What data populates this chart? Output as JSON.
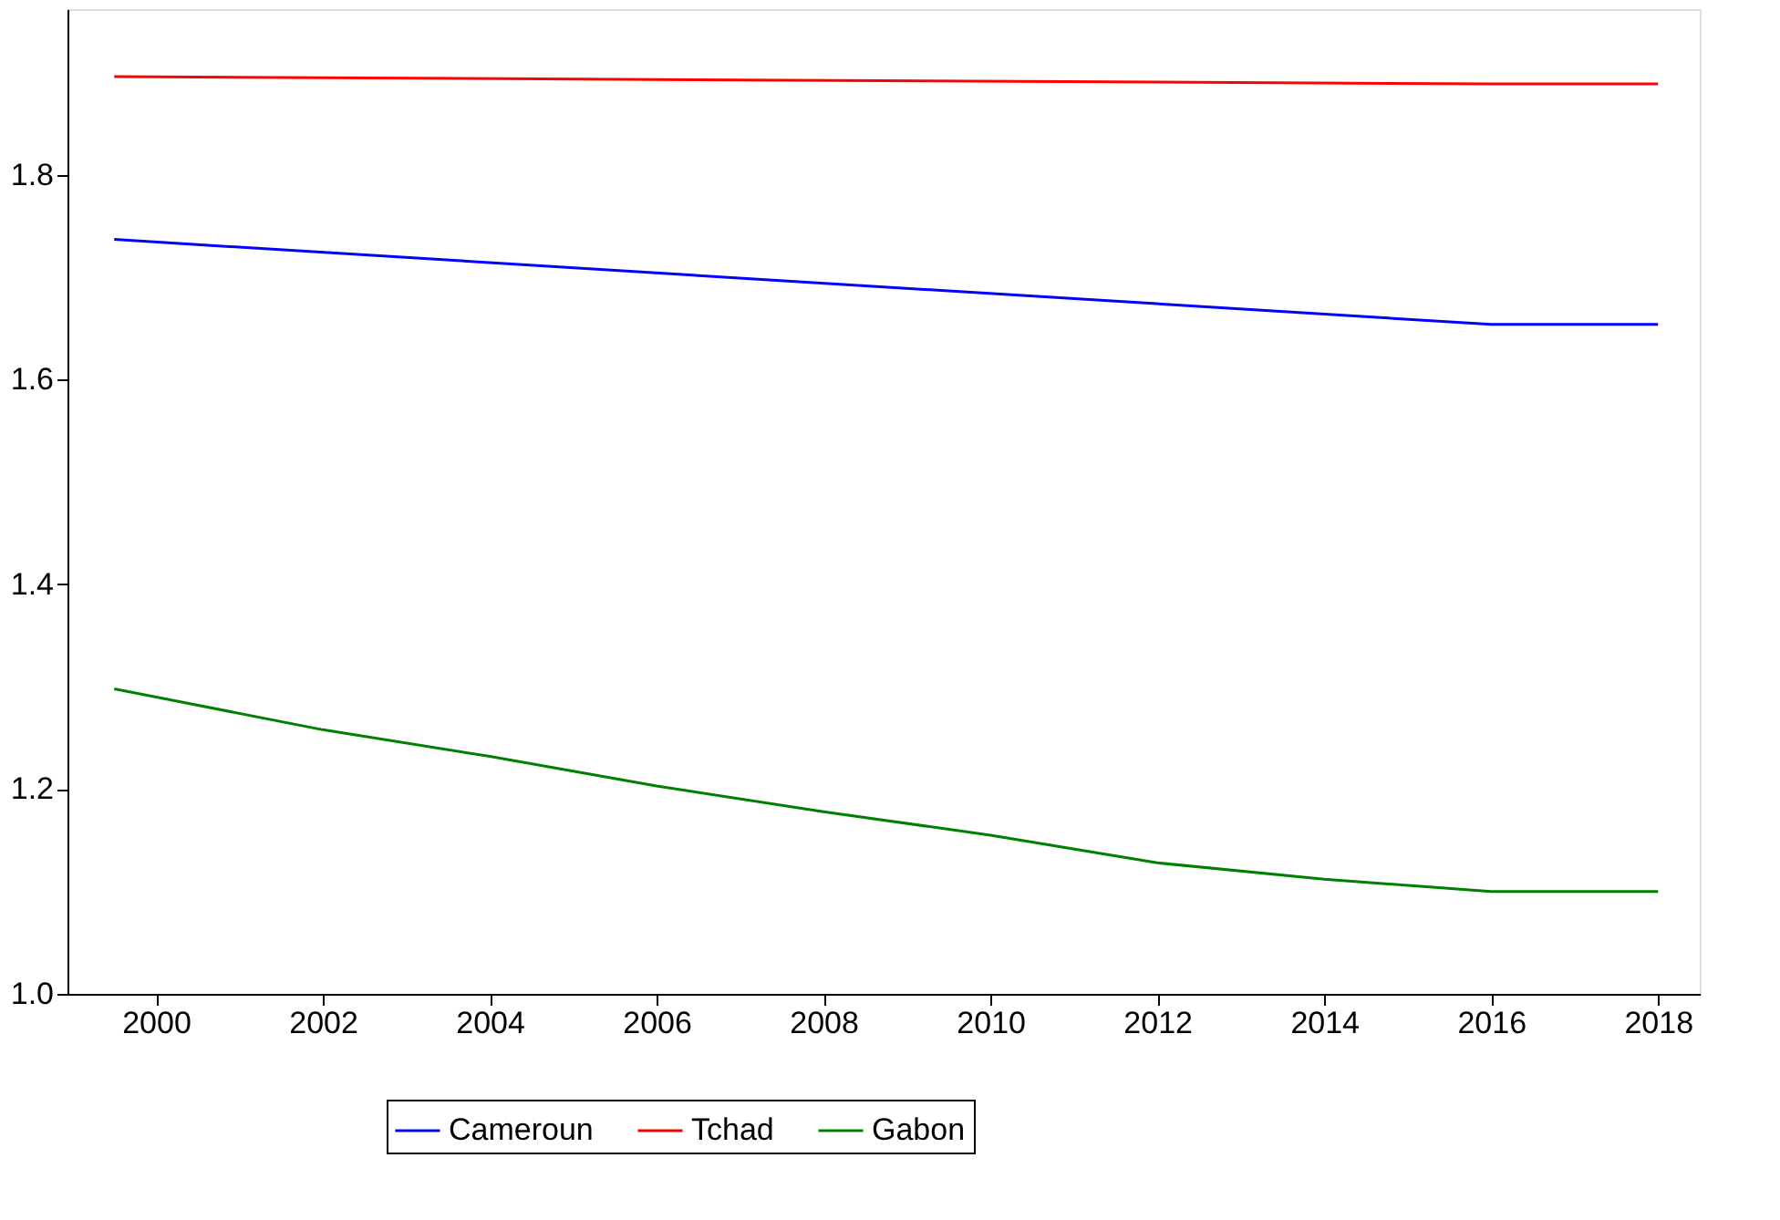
{
  "chart_data": {
    "type": "line",
    "xlim": [
      1998.94,
      2018.5
    ],
    "xticks": [
      2000,
      2002,
      2004,
      2006,
      2008,
      2010,
      2012,
      2014,
      2016,
      2018
    ],
    "ylim": [
      1.0,
      1.962
    ],
    "yticks": [
      {
        "value": 1.0,
        "label": "1.0"
      },
      1.2,
      1.4,
      1.6,
      1.8
    ],
    "grid": false,
    "legend": "bottom",
    "line_style": "solid",
    "marker": "none",
    "series": [
      {
        "name": "Cameroun",
        "color": "#0000ff",
        "x": [
          1999.5,
          2016,
          2018
        ],
        "values": [
          1.737,
          1.654,
          1.654
        ]
      },
      {
        "name": "Tchad",
        "color": "#ff0000",
        "x": [
          1999.5,
          2016,
          2018
        ],
        "values": [
          1.896,
          1.889,
          1.889
        ]
      },
      {
        "name": "Gabon",
        "color": "#008000",
        "x": [
          1999.5,
          2002,
          2004,
          2006,
          2008,
          2010,
          2012,
          2014,
          2016,
          2018
        ],
        "values": [
          1.298,
          1.258,
          1.232,
          1.203,
          1.178,
          1.155,
          1.128,
          1.112,
          1.1,
          1.1
        ]
      }
    ]
  }
}
